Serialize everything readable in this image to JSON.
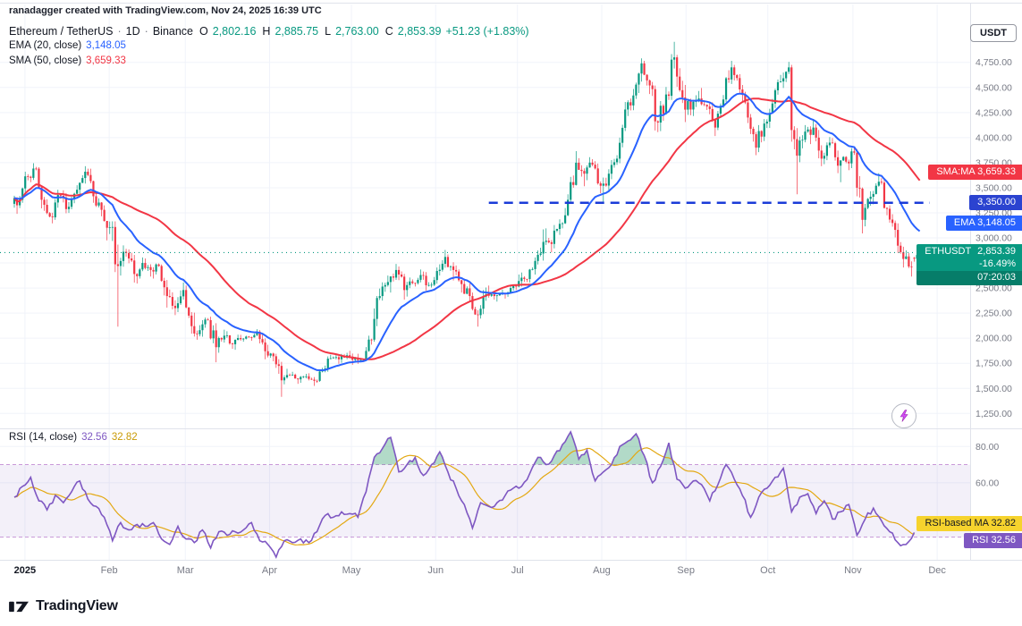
{
  "attribution": "ranadagger created with TradingView.com, Nov 24, 2025 16:39 UTC",
  "header": {
    "symbol": "Ethereum / TetherUS",
    "sep": "·",
    "interval": "1D",
    "exchange": "Binance",
    "ohlc": [
      {
        "k": "O",
        "v": "2,802.16"
      },
      {
        "k": "H",
        "v": "2,885.75"
      },
      {
        "k": "L",
        "v": "2,763.00"
      },
      {
        "k": "C",
        "v": "2,853.39"
      }
    ],
    "change": "+51.23 (+1.83%)",
    "ema_label": "EMA (20, close)",
    "ema_value": "3,148.05",
    "sma_label": "SMA (50, close)",
    "sma_value": "3,659.33"
  },
  "rsi_header": {
    "label": "RSI (14, close)",
    "value": "32.56",
    "ma_value": "32.82"
  },
  "axis_button": "USDT",
  "badges": {
    "sma": {
      "text": "SMA:MA 3,659.33",
      "value": 3659.33,
      "bg": "#f23645"
    },
    "level": {
      "text": "3,350.00",
      "value": 3350.0,
      "bg": "#2b43d0"
    },
    "ema": {
      "text": "EMA 3,148.05",
      "value": 3148.05,
      "bg": "#2962ff"
    },
    "price": {
      "symbol": "ETHUSDT",
      "price": "2,853.39",
      "change_pct": "-16.49%",
      "countdown": "07:20:03",
      "value": 2853.39,
      "bg": "#089981"
    },
    "rsi_ma": {
      "text": "RSI-based MA 32.82",
      "value": 32.82,
      "bg": "#f6d32d",
      "fg": "#131722"
    },
    "rsi": {
      "text": "RSI 32.56",
      "value": 32.56,
      "bg": "#7e57c2"
    }
  },
  "footer_wordmark": "TradingView",
  "colors": {
    "up": "#089981",
    "down": "#f23645",
    "ema": "#2962ff",
    "sma": "#f23645",
    "hline": "#1a3bd8",
    "grid": "#f0f3fa",
    "axis_border": "#e0e3eb",
    "tick_text": "#787b86",
    "rsi": "#7e57c2",
    "rsi_ma": "#e3a812",
    "rsi_band_line": "#8e24aa",
    "rsi_band_fill": "rgba(126,87,194,0.09)",
    "overbought_fill": "rgba(34,150,96,0.35)"
  },
  "chart_data": {
    "type": "candlestick",
    "title": "Ethereum / TetherUS, 1D, Binance",
    "x_axis": {
      "labels": [
        {
          "text": "2025",
          "i": 1.3,
          "bold": true
        },
        {
          "text": "Feb",
          "i": 11.6
        },
        {
          "text": "Mar",
          "i": 20.9
        },
        {
          "text": "Apr",
          "i": 31.2
        },
        {
          "text": "May",
          "i": 41.2
        },
        {
          "text": "Jun",
          "i": 51.5
        },
        {
          "text": "Jul",
          "i": 61.5
        },
        {
          "text": "Aug",
          "i": 71.8
        },
        {
          "text": "Sep",
          "i": 82.1
        },
        {
          "text": "Oct",
          "i": 92.1
        },
        {
          "text": "Nov",
          "i": 102.5
        },
        {
          "text": "Dec",
          "i": 112.8
        }
      ]
    },
    "main_pane": {
      "ylim": [
        1110,
        5140
      ],
      "yticks": [
        1250,
        1500,
        1750,
        2000,
        2250,
        2500,
        2750,
        3000,
        3250,
        3500,
        3750,
        4000,
        4250,
        4500,
        4750
      ],
      "ema_period": 20,
      "sma_period": 50,
      "hline": {
        "value": 3350.0,
        "start_i": 58
      },
      "price_line": {
        "value": 2853.39
      },
      "candles": [
        [
          3340,
          3420,
          3240,
          3380
        ],
        [
          3380,
          3660,
          3350,
          3610
        ],
        [
          3610,
          3745,
          3555,
          3690
        ],
        [
          3690,
          3705,
          3270,
          3330
        ],
        [
          3330,
          3385,
          3145,
          3205
        ],
        [
          3205,
          3480,
          3180,
          3420
        ],
        [
          3420,
          3475,
          3245,
          3310
        ],
        [
          3310,
          3525,
          3285,
          3480
        ],
        [
          3480,
          3715,
          3430,
          3660
        ],
        [
          3660,
          3690,
          3350,
          3415
        ],
        [
          3415,
          3455,
          3215,
          3280
        ],
        [
          3280,
          3325,
          2975,
          3105
        ],
        [
          3105,
          3165,
          2115,
          2720
        ],
        [
          2720,
          2925,
          2625,
          2850
        ],
        [
          2850,
          2885,
          2555,
          2640
        ],
        [
          2640,
          2805,
          2545,
          2750
        ],
        [
          2750,
          2795,
          2615,
          2680
        ],
        [
          2680,
          2745,
          2595,
          2720
        ],
        [
          2720,
          2735,
          2305,
          2420
        ],
        [
          2420,
          2485,
          2230,
          2300
        ],
        [
          2300,
          2555,
          2260,
          2480
        ],
        [
          2480,
          2525,
          2045,
          2120
        ],
        [
          2120,
          2255,
          1985,
          2080
        ],
        [
          2080,
          2205,
          2015,
          2180
        ],
        [
          2180,
          2215,
          1760,
          1910
        ],
        [
          1910,
          2085,
          1855,
          2025
        ],
        [
          2025,
          2070,
          1895,
          1940
        ],
        [
          1940,
          2035,
          1885,
          1990
        ],
        [
          1990,
          2025,
          1965,
          2010
        ],
        [
          2010,
          2090,
          1975,
          2065
        ],
        [
          2065,
          2080,
          1790,
          1870
        ],
        [
          1870,
          1935,
          1770,
          1820
        ],
        [
          1820,
          1845,
          1415,
          1580
        ],
        [
          1580,
          1695,
          1540,
          1630
        ],
        [
          1630,
          1665,
          1545,
          1590
        ],
        [
          1590,
          1645,
          1555,
          1620
        ],
        [
          1620,
          1650,
          1525,
          1575
        ],
        [
          1575,
          1705,
          1555,
          1680
        ],
        [
          1680,
          1835,
          1660,
          1800
        ],
        [
          1800,
          1845,
          1745,
          1790
        ],
        [
          1790,
          1855,
          1755,
          1830
        ],
        [
          1830,
          1875,
          1735,
          1805
        ],
        [
          1805,
          1845,
          1745,
          1790
        ],
        [
          1790,
          2025,
          1775,
          1985
        ],
        [
          1985,
          2495,
          1965,
          2420
        ],
        [
          2420,
          2625,
          2375,
          2560
        ],
        [
          2560,
          2740,
          2455,
          2680
        ],
        [
          2680,
          2715,
          2385,
          2480
        ],
        [
          2480,
          2605,
          2415,
          2550
        ],
        [
          2550,
          2685,
          2515,
          2630
        ],
        [
          2630,
          2665,
          2475,
          2530
        ],
        [
          2530,
          2705,
          2505,
          2670
        ],
        [
          2670,
          2880,
          2625,
          2810
        ],
        [
          2810,
          2835,
          2575,
          2680
        ],
        [
          2680,
          2725,
          2455,
          2540
        ],
        [
          2540,
          2595,
          2365,
          2420
        ],
        [
          2420,
          2455,
          2115,
          2230
        ],
        [
          2230,
          2505,
          2195,
          2440
        ],
        [
          2440,
          2525,
          2385,
          2420
        ],
        [
          2420,
          2485,
          2365,
          2450
        ],
        [
          2450,
          2525,
          2395,
          2500
        ],
        [
          2500,
          2635,
          2475,
          2570
        ],
        [
          2570,
          2655,
          2515,
          2590
        ],
        [
          2590,
          2805,
          2555,
          2770
        ],
        [
          2770,
          3085,
          2735,
          2960
        ],
        [
          2960,
          3095,
          2855,
          2940
        ],
        [
          2940,
          3185,
          2895,
          3140
        ],
        [
          3140,
          3435,
          3095,
          3380
        ],
        [
          3380,
          3865,
          3345,
          3750
        ],
        [
          3750,
          3795,
          3515,
          3640
        ],
        [
          3640,
          3805,
          3575,
          3730
        ],
        [
          3730,
          3765,
          3445,
          3520
        ],
        [
          3520,
          3685,
          3345,
          3640
        ],
        [
          3640,
          3825,
          3585,
          3790
        ],
        [
          3790,
          4355,
          3745,
          4280
        ],
        [
          4280,
          4485,
          4215,
          4420
        ],
        [
          4420,
          4790,
          4385,
          4740
        ],
        [
          4740,
          4765,
          4435,
          4520
        ],
        [
          4520,
          4555,
          4055,
          4150
        ],
        [
          4150,
          4505,
          4065,
          4430
        ],
        [
          4430,
          4955,
          4375,
          4800
        ],
        [
          4800,
          4825,
          4345,
          4400
        ],
        [
          4400,
          4525,
          4155,
          4280
        ],
        [
          4280,
          4465,
          4215,
          4390
        ],
        [
          4390,
          4495,
          4275,
          4310
        ],
        [
          4310,
          4355,
          4015,
          4100
        ],
        [
          4100,
          4425,
          4075,
          4380
        ],
        [
          4380,
          4765,
          4355,
          4700
        ],
        [
          4700,
          4725,
          4435,
          4480
        ],
        [
          4480,
          4525,
          4145,
          4200
        ],
        [
          4200,
          4235,
          3825,
          3900
        ],
        [
          3900,
          4185,
          3855,
          4140
        ],
        [
          4140,
          4385,
          4095,
          4340
        ],
        [
          4340,
          4625,
          4295,
          4560
        ],
        [
          4560,
          4755,
          4495,
          4700
        ],
        [
          4700,
          4725,
          3435,
          3820
        ],
        [
          3820,
          4125,
          3755,
          4060
        ],
        [
          4060,
          4185,
          3935,
          4100
        ],
        [
          4100,
          4135,
          3715,
          3790
        ],
        [
          3790,
          4005,
          3735,
          3950
        ],
        [
          3950,
          3995,
          3645,
          3720
        ],
        [
          3720,
          3815,
          3555,
          3760
        ],
        [
          3760,
          3895,
          3675,
          3850
        ],
        [
          3850,
          3885,
          3045,
          3180
        ],
        [
          3180,
          3465,
          3115,
          3410
        ],
        [
          3410,
          3645,
          3335,
          3560
        ],
        [
          3560,
          3595,
          3225,
          3290
        ],
        [
          3290,
          3325,
          3005,
          3080
        ],
        [
          3080,
          3145,
          2705,
          2790
        ],
        [
          2790,
          2875,
          2615,
          2710
        ],
        [
          2802,
          2886,
          2763,
          2853
        ]
      ]
    },
    "rsi_pane": {
      "ylim": [
        18.5,
        89
      ],
      "yticks": [
        80,
        60
      ],
      "band": [
        30,
        70
      ],
      "period": 14,
      "value": 32.56,
      "ma_value": 32.82,
      "values": [
        52,
        58,
        63,
        50,
        45,
        53,
        49,
        55,
        61,
        51,
        47,
        41,
        28,
        38,
        34,
        37,
        36,
        38,
        29,
        26,
        36,
        29,
        27,
        34,
        24,
        33,
        31,
        33,
        34,
        38,
        28,
        26,
        19,
        28,
        27,
        29,
        27,
        33,
        42,
        41,
        44,
        43,
        41,
        55,
        74,
        79,
        85,
        66,
        70,
        74,
        64,
        70,
        77,
        66,
        57,
        48,
        35,
        49,
        47,
        49,
        53,
        57,
        58,
        65,
        74,
        70,
        75,
        81,
        88,
        73,
        78,
        61,
        66,
        70,
        80,
        83,
        87,
        75,
        60,
        69,
        82,
        62,
        57,
        61,
        59,
        50,
        59,
        70,
        62,
        53,
        41,
        52,
        57,
        63,
        68,
        44,
        52,
        54,
        43,
        50,
        40,
        44,
        48,
        31,
        40,
        46,
        39,
        33,
        27,
        26,
        32.6
      ]
    }
  }
}
